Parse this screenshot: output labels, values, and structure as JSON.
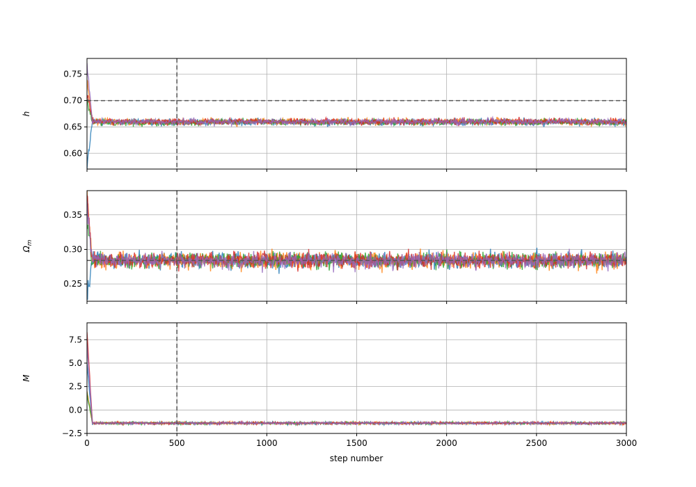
{
  "chart_data": {
    "type": "line",
    "xlabel": "step number",
    "xlim": [
      0,
      3000
    ],
    "xticks": [
      0,
      500,
      1000,
      1500,
      2000,
      2500,
      3000
    ],
    "burn_in_step": 500,
    "walker_colors": [
      "#1f77b4",
      "#ff7f0e",
      "#2ca02c",
      "#d62728",
      "#9467bd"
    ],
    "grid": true,
    "panels": [
      {
        "ylabel": "h",
        "ylim": [
          0.57,
          0.78
        ],
        "yticks": [
          0.6,
          0.65,
          0.7,
          0.75
        ],
        "ytick_labels": [
          "0.60",
          "0.65",
          "0.70",
          "0.75"
        ],
        "truth_value": 0.7,
        "walkers": [
          {
            "start": 0.575,
            "mean": 0.659,
            "spread": 0.006
          },
          {
            "start": 0.74,
            "mean": 0.66,
            "spread": 0.006
          },
          {
            "start": 0.7,
            "mean": 0.659,
            "spread": 0.006
          },
          {
            "start": 0.72,
            "mean": 0.66,
            "spread": 0.006
          },
          {
            "start": 0.77,
            "mean": 0.66,
            "spread": 0.006
          }
        ]
      },
      {
        "ylabel": "Ωm",
        "ylim": [
          0.225,
          0.385
        ],
        "yticks": [
          0.25,
          0.3,
          0.35
        ],
        "ytick_labels": [
          "0.25",
          "0.30",
          "0.35"
        ],
        "truth_value": 0.284,
        "walkers": [
          {
            "start": 0.232,
            "mean": 0.284,
            "spread": 0.011
          },
          {
            "start": 0.375,
            "mean": 0.284,
            "spread": 0.011
          },
          {
            "start": 0.34,
            "mean": 0.284,
            "spread": 0.011
          },
          {
            "start": 0.378,
            "mean": 0.284,
            "spread": 0.011
          },
          {
            "start": 0.36,
            "mean": 0.284,
            "spread": 0.011
          }
        ]
      },
      {
        "ylabel": "M",
        "ylim": [
          -2.5,
          9.3
        ],
        "yticks": [
          -2.5,
          0.0,
          2.5,
          5.0,
          7.5
        ],
        "ytick_labels": [
          "−2.5",
          "0.0",
          "2.5",
          "5.0",
          "7.5"
        ],
        "truth_value": null,
        "walkers": [
          {
            "start": 5.0,
            "mean": -1.4,
            "spread": 0.12
          },
          {
            "start": 2.0,
            "mean": -1.4,
            "spread": 0.12
          },
          {
            "start": 1.8,
            "mean": -1.4,
            "spread": 0.12
          },
          {
            "start": 8.5,
            "mean": -1.4,
            "spread": 0.12
          },
          {
            "start": 7.0,
            "mean": -1.4,
            "spread": 0.12
          }
        ]
      }
    ]
  }
}
